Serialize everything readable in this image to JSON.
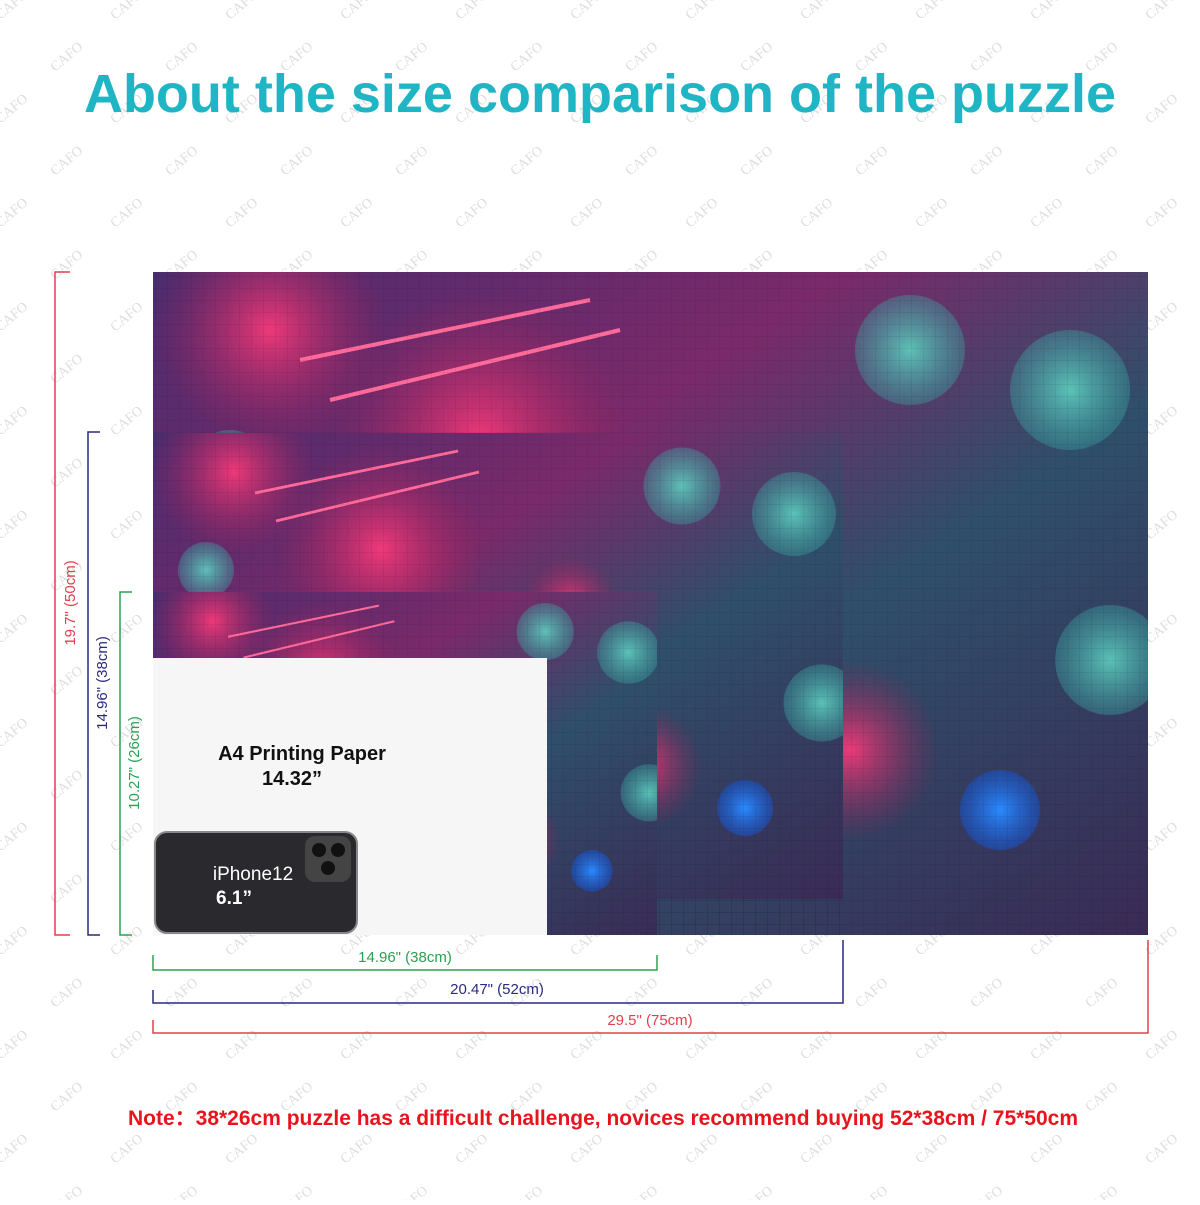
{
  "header": {
    "title": "About the size comparison of the puzzle"
  },
  "watermark": "CAFO",
  "heights": {
    "large": "19.7\" (50cm)",
    "medium": "14.96\" (38cm)",
    "small": "10.27\" (26cm)"
  },
  "widths": {
    "small": "14.96\" (38cm)",
    "medium": "20.47\" (52cm)",
    "large": "29.5\" (75cm)"
  },
  "paper": {
    "label": "A4 Printing Paper",
    "size": "14.32”"
  },
  "phone": {
    "label": "iPhone12",
    "size": "6.1”"
  },
  "note": "Note：38*26cm puzzle has a difficult challenge, novices recommend buying 52*38cm / 75*50cm"
}
